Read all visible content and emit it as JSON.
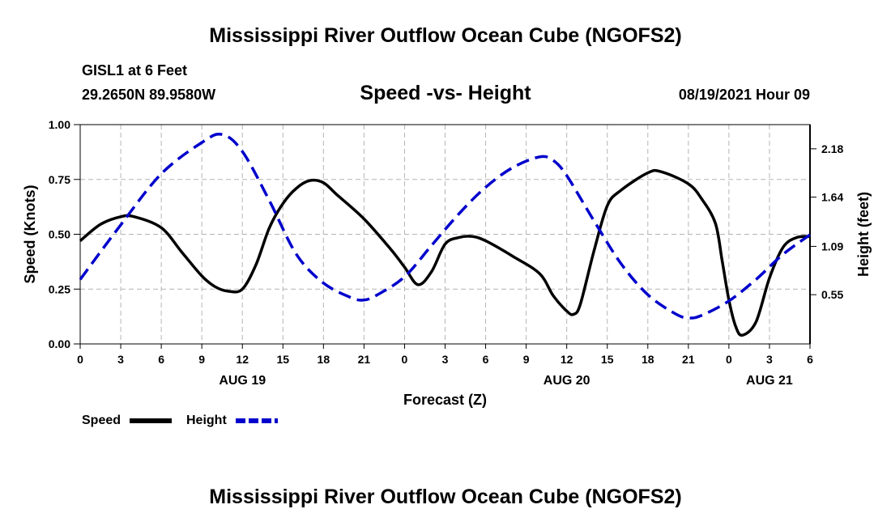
{
  "header": {
    "title": "Mississippi River Outflow Ocean Cube (NGOFS2)",
    "station": "GISL1 at 6 Feet",
    "coords": "29.2650N  89.9580W",
    "subtitle": "Speed -vs- Height",
    "datetime": "08/19/2021 Hour 09",
    "footer_title": "Mississippi River Outflow Ocean Cube (NGOFS2)"
  },
  "colors": {
    "speed": "#000000",
    "height": "#0000cc",
    "grid": "#b4b4b4"
  },
  "chart_data": {
    "type": "line",
    "title": "Speed -vs- Height",
    "xlabel": "Forecast (Z)",
    "ylabel": "Speed (Knots)",
    "y2label": "Height (feet)",
    "xlim": [
      0,
      54
    ],
    "ylim": [
      0,
      1
    ],
    "y2lim": [
      0,
      2.45
    ],
    "grid": true,
    "legend_position": "bottom-left",
    "x_ticks": [
      0,
      3,
      6,
      9,
      12,
      15,
      18,
      21,
      24,
      27,
      30,
      33,
      36,
      39,
      42,
      45,
      48,
      51,
      54
    ],
    "x_tick_labels": [
      "0",
      "3",
      "6",
      "9",
      "12",
      "15",
      "18",
      "21",
      "0",
      "3",
      "6",
      "9",
      "12",
      "15",
      "18",
      "21",
      "0",
      "3",
      "6"
    ],
    "date_labels": [
      {
        "x": 12,
        "label": "AUG 19"
      },
      {
        "x": 36,
        "label": "AUG 20"
      },
      {
        "x": 51,
        "label": "AUG 21"
      }
    ],
    "y_ticks": [
      0,
      0.25,
      0.5,
      0.75,
      1
    ],
    "y_tick_labels": [
      "0.00",
      "0.25",
      "0.50",
      "0.75",
      "1.00"
    ],
    "y2_ticks": [
      0.55,
      1.09,
      1.64,
      2.18
    ],
    "y2_tick_labels": [
      "0.55",
      "1.09",
      "1.64",
      "2.18"
    ],
    "series": [
      {
        "name": "Speed",
        "axis": "left",
        "style": "solid",
        "x": [
          0,
          1.5,
          3,
          4,
          6,
          7.5,
          9,
          10,
          11,
          12,
          13,
          14,
          15,
          16,
          17,
          18,
          19,
          21,
          23,
          24,
          25,
          26,
          27,
          28,
          29,
          30,
          32,
          34,
          35,
          36,
          36.5,
          37,
          38,
          39,
          40,
          42,
          43,
          45,
          46,
          47,
          47.5,
          48,
          48.5,
          49,
          50,
          51,
          52,
          53,
          54
        ],
        "y": [
          0.47,
          0.545,
          0.58,
          0.58,
          0.53,
          0.42,
          0.31,
          0.26,
          0.24,
          0.25,
          0.36,
          0.53,
          0.64,
          0.71,
          0.745,
          0.735,
          0.68,
          0.57,
          0.43,
          0.35,
          0.27,
          0.33,
          0.455,
          0.485,
          0.49,
          0.47,
          0.4,
          0.32,
          0.22,
          0.15,
          0.135,
          0.18,
          0.42,
          0.63,
          0.7,
          0.78,
          0.785,
          0.73,
          0.66,
          0.55,
          0.38,
          0.2,
          0.08,
          0.04,
          0.1,
          0.3,
          0.44,
          0.485,
          0.49
        ]
      },
      {
        "name": "Height",
        "axis": "right",
        "style": "dashed",
        "x": [
          0,
          3,
          6,
          9,
          10.5,
          12,
          14,
          16,
          18,
          20,
          21,
          22,
          24,
          26,
          28,
          30,
          32,
          34,
          35,
          36,
          38,
          40,
          42,
          44,
          45,
          46,
          48,
          50,
          52,
          54
        ],
        "y": [
          0.72,
          1.33,
          1.9,
          2.25,
          2.34,
          2.15,
          1.6,
          1.0,
          0.68,
          0.52,
          0.49,
          0.55,
          0.75,
          1.1,
          1.45,
          1.75,
          1.97,
          2.09,
          2.05,
          1.88,
          1.38,
          0.9,
          0.55,
          0.34,
          0.29,
          0.32,
          0.48,
          0.72,
          1.0,
          1.22
        ]
      }
    ]
  }
}
